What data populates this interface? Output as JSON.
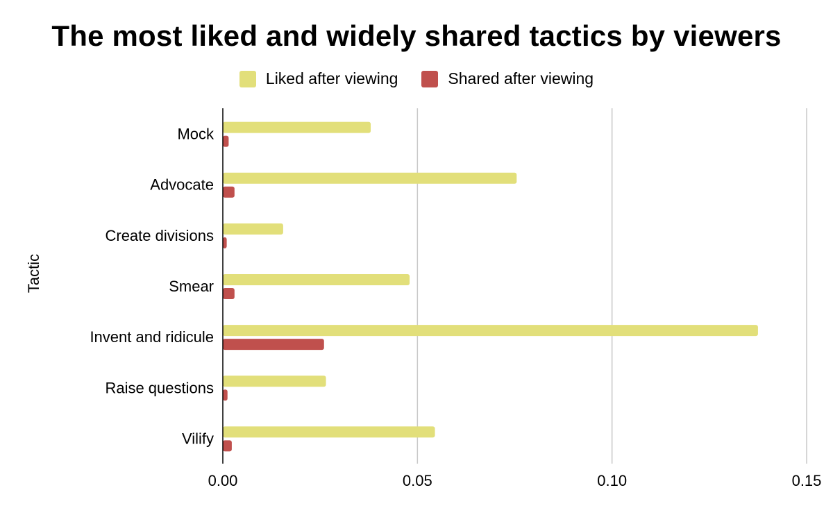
{
  "chart_data": {
    "type": "bar",
    "orientation": "horizontal",
    "title": "The most liked and widely shared tactics by viewers",
    "xlabel": "",
    "ylabel": "Tactic",
    "categories": [
      "Mock",
      "Advocate",
      "Create divisions",
      "Smear",
      "Invent and ridicule",
      "Raise questions",
      "Vilify"
    ],
    "series": [
      {
        "name": "Liked after viewing",
        "color": "#e2df7a",
        "values": [
          0.038,
          0.0755,
          0.0155,
          0.048,
          0.1375,
          0.0265,
          0.0545
        ]
      },
      {
        "name": "Shared after viewing",
        "color": "#c0504d",
        "values": [
          0.0015,
          0.003,
          0.001,
          0.003,
          0.026,
          0.0012,
          0.0023
        ]
      }
    ],
    "xlim": [
      0,
      0.15
    ],
    "xticks": [
      "0.00",
      "0.05",
      "0.10",
      "0.15"
    ],
    "xtick_values": [
      0,
      0.05,
      0.1,
      0.15
    ],
    "grid": "vertical",
    "legend_position": "top"
  }
}
